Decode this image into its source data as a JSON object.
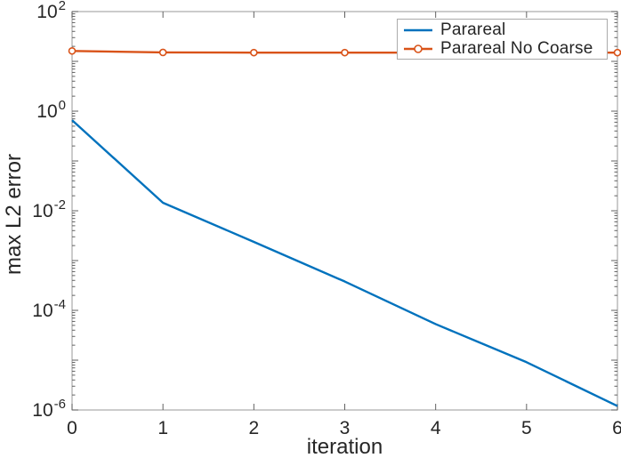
{
  "chart_data": {
    "type": "line",
    "title": "",
    "xlabel": "iteration",
    "ylabel": "max L2 error",
    "x": [
      0,
      1,
      2,
      3,
      4,
      5,
      6
    ],
    "xlim": [
      0,
      6
    ],
    "yscale": "log",
    "ylim": [
      1e-06,
      100
    ],
    "ylim_exponents": [
      -6,
      2
    ],
    "xticks": [
      0,
      1,
      2,
      3,
      4,
      5,
      6
    ],
    "ytick_exponents": [
      2,
      0,
      -2,
      -4,
      -6
    ],
    "grid": false,
    "legend_position": "northeast",
    "series": [
      {
        "name": "Parareal",
        "color": "#0072BD",
        "marker": "none",
        "values": [
          0.66,
          0.0145,
          0.00237,
          0.00038,
          5.3e-05,
          9.1e-06,
          1.2e-06
        ]
      },
      {
        "name": "Parareal No Coarse",
        "color": "#D95319",
        "marker": "circle",
        "values": [
          16.2,
          15.1,
          15.0,
          15.0,
          15.0,
          15.0,
          15.0
        ]
      }
    ]
  },
  "style": {
    "background": "#ffffff",
    "axis_box_color": "#ababab",
    "tick_color": "#616161",
    "text_color": "#262626",
    "legend_border_color": "#ababab"
  }
}
